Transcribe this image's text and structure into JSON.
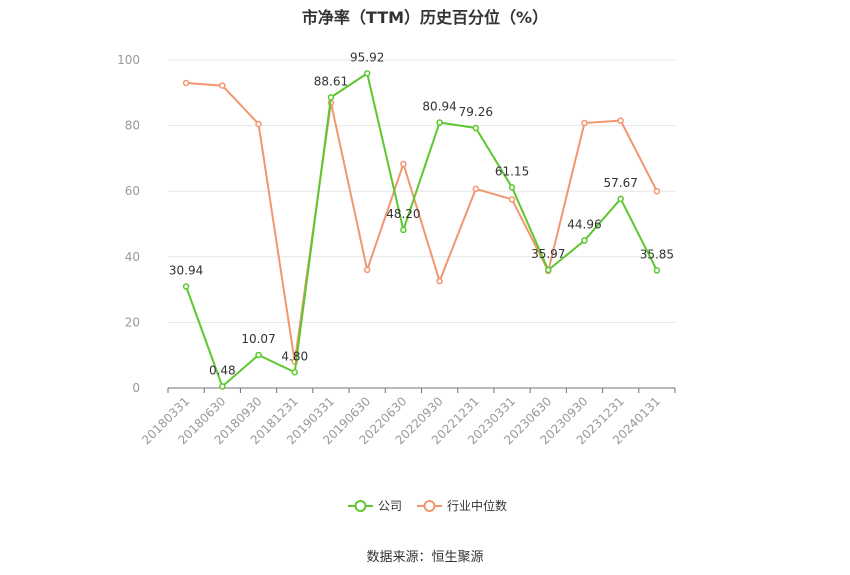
{
  "chart_data": {
    "type": "line",
    "title": "市净率（TTM）历史百分位（%）",
    "categories": [
      "20180331",
      "20180630",
      "20180930",
      "20181231",
      "20190331",
      "20190630",
      "20220630",
      "20220930",
      "20221231",
      "20230331",
      "20230630",
      "20230930",
      "20231231",
      "20240131"
    ],
    "y_ticks": [
      "0",
      "20",
      "40",
      "60",
      "80",
      "100"
    ],
    "ylim": [
      0,
      100
    ],
    "grid": true,
    "legend_position": "bottom",
    "series": [
      {
        "name": "公司",
        "color": "#5cc72e",
        "values": [
          30.94,
          0.48,
          10.07,
          4.8,
          88.61,
          95.92,
          48.2,
          80.94,
          79.26,
          61.15,
          35.97,
          44.96,
          57.67,
          35.85
        ],
        "labels": [
          "30.94",
          "0.48",
          "10.07",
          "4.80",
          "88.61",
          "95.92",
          "48.20",
          "80.94",
          "79.26",
          "61.15",
          "35.97",
          "44.96",
          "57.67",
          "35.85"
        ]
      },
      {
        "name": "行业中位数",
        "color": "#f29670",
        "values": [
          93,
          92.2,
          80.5,
          8,
          87,
          36,
          68.3,
          32.6,
          60.7,
          57.5,
          35.7,
          80.8,
          81.5,
          60
        ]
      }
    ]
  },
  "source": "数据来源：恒生聚源"
}
